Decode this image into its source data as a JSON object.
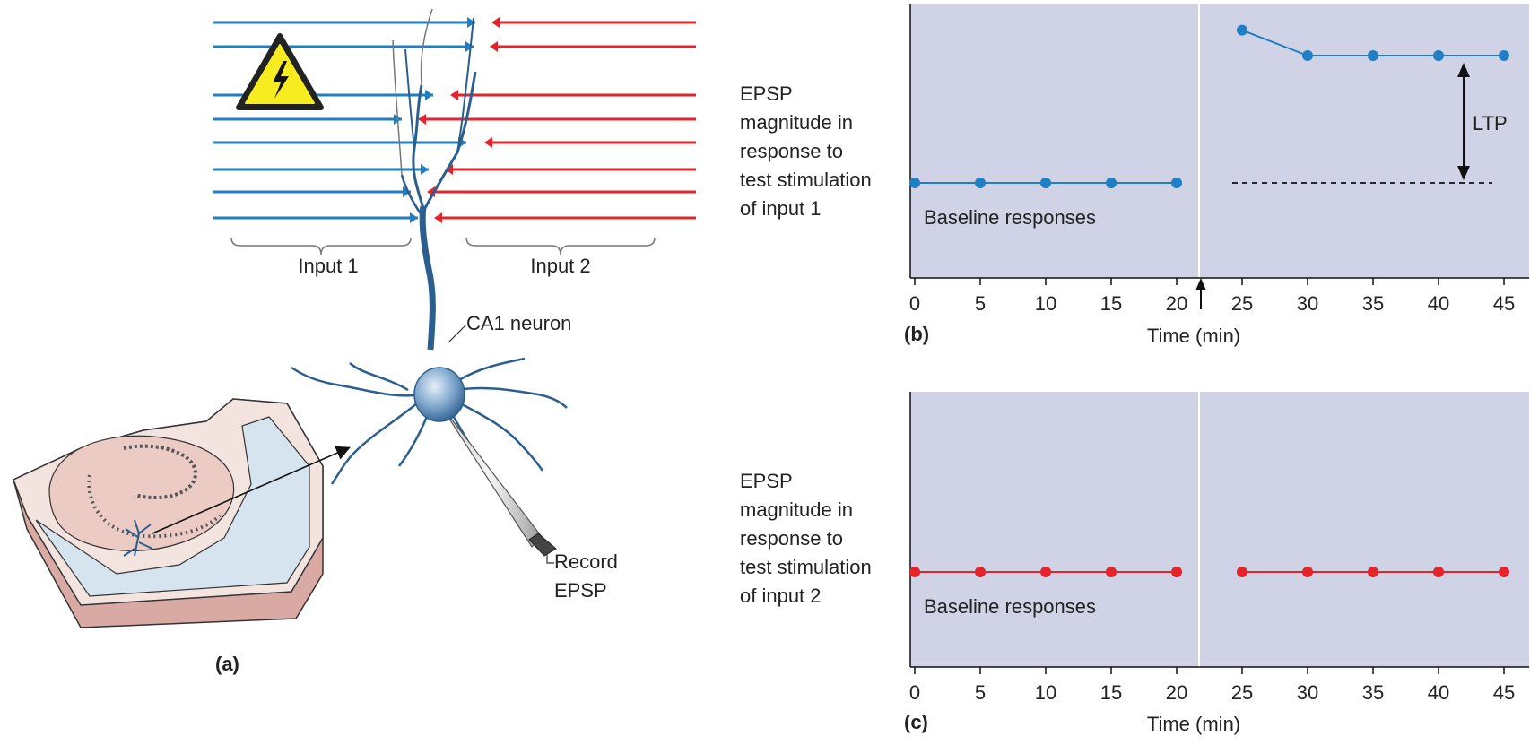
{
  "panel_a": {
    "tag": "(a)",
    "input1_label": "Input 1",
    "input2_label": "Input 2",
    "neuron_label": "CA1 neuron",
    "record_label_line1": "Record",
    "record_label_line2": "EPSP",
    "warning_icon": "high-voltage-warning-icon",
    "colors": {
      "input1": "#1f7fc2",
      "input2": "#e3242b",
      "neuron": "#2c5f8d"
    }
  },
  "panel_b": {
    "tag": "(b)",
    "ylabel_lines": [
      "EPSP",
      "magnitude in",
      "response to",
      "test stimulation",
      "of input 1"
    ],
    "xlabel": "Time (min)",
    "ticks": [
      "0",
      "5",
      "10",
      "15",
      "20",
      "25",
      "30",
      "35",
      "40",
      "45"
    ],
    "annotation_baseline": "Baseline responses",
    "annotation_ltp": "LTP",
    "stimulation_marker": "arrow-up-icon"
  },
  "panel_c": {
    "tag": "(c)",
    "ylabel_lines": [
      "EPSP",
      "magnitude in",
      "response to",
      "test stimulation",
      "of input 2"
    ],
    "xlabel": "Time (min)",
    "ticks": [
      "0",
      "5",
      "10",
      "15",
      "20",
      "25",
      "30",
      "35",
      "40",
      "45"
    ],
    "annotation_baseline": "Baseline responses"
  },
  "chart_data": [
    {
      "type": "line",
      "panel": "b",
      "x": [
        0,
        5,
        10,
        15,
        20,
        25,
        30,
        35,
        40,
        45
      ],
      "series": [
        {
          "values": [
            1.0,
            1.0,
            1.0,
            1.0,
            1.0,
            2.2,
            2.0,
            2.0,
            2.0,
            2.0
          ],
          "color": "#1f7fc2"
        }
      ],
      "baseline_reference": 1.0,
      "stimulation_time": 22.5,
      "xlim": [
        0,
        47
      ],
      "ylim": [
        0,
        2.5
      ]
    },
    {
      "type": "line",
      "panel": "c",
      "x": [
        0,
        5,
        10,
        15,
        20,
        25,
        30,
        35,
        40,
        45
      ],
      "series": [
        {
          "values": [
            1.0,
            1.0,
            1.0,
            1.0,
            1.0,
            1.0,
            1.0,
            1.0,
            1.0,
            1.0
          ],
          "color": "#e3242b"
        }
      ],
      "stimulation_time": 22.5,
      "xlim": [
        0,
        47
      ],
      "ylim": [
        0,
        2.5
      ]
    }
  ]
}
